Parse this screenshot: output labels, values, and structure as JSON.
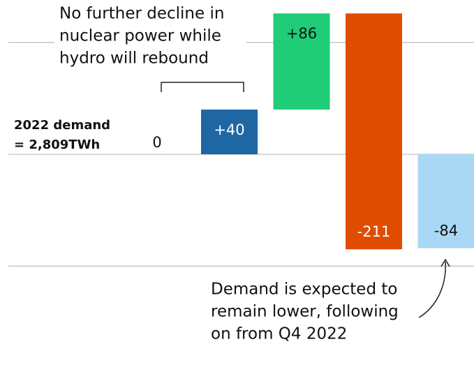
{
  "chart_data": {
    "type": "waterfall",
    "categories": [
      null,
      null,
      null,
      null,
      null
    ],
    "values": [
      0,
      40,
      86,
      -211,
      -84
    ],
    "value_labels": [
      "0",
      "+40",
      "+86",
      "-211",
      "-84"
    ],
    "measure": [
      "relative",
      "relative",
      "relative",
      "relative",
      "total"
    ],
    "colors": [
      "#ffffff",
      "#1f67a3",
      "#1fcc78",
      "#e04d00",
      "#a9d8f4"
    ],
    "label_colors": [
      "#111111",
      "#ffffff",
      "#111111",
      "#ffffff",
      "#111111"
    ],
    "ylim": [
      -201,
      138
    ],
    "gridlines": [
      -100,
      0,
      100
    ],
    "annotations": {
      "top": [
        "No further decline in",
        "nuclear power while",
        "hydro will rebound"
      ],
      "baseline": [
        "2022 demand",
        "= 2,809TWh"
      ],
      "bottom": [
        "Demand is expected to",
        "remain lower, following",
        "on from Q4 2022"
      ]
    }
  }
}
